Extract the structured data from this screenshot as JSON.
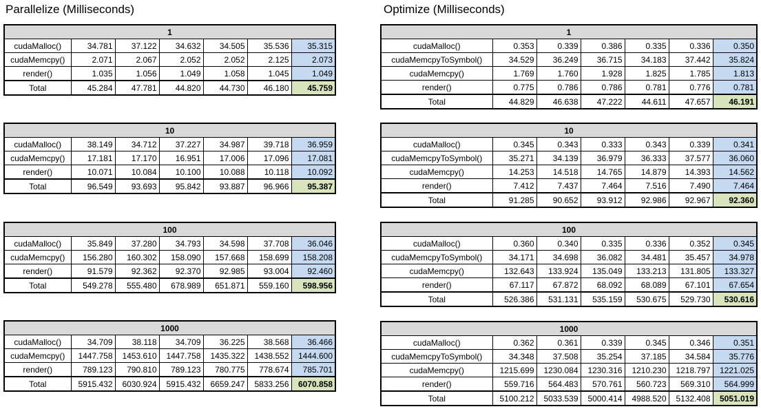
{
  "parallelize": {
    "title": "Parallelize (Milliseconds)",
    "blocks": [
      {
        "header": "1",
        "rows": [
          {
            "label": "cudaMalloc()",
            "values": [
              "34.781",
              "37.122",
              "34.632",
              "34.505",
              "35.536"
            ],
            "avg": "35.315"
          },
          {
            "label": "cudaMemcpy()",
            "values": [
              "2.071",
              "2.067",
              "2.052",
              "2.052",
              "2.125"
            ],
            "avg": "2.073"
          },
          {
            "label": "render()",
            "values": [
              "1.035",
              "1.056",
              "1.049",
              "1.058",
              "1.045"
            ],
            "avg": "1.049"
          },
          {
            "label": "Total",
            "values": [
              "45.284",
              "47.781",
              "44.820",
              "44.730",
              "46.180"
            ],
            "avg": "45.759"
          }
        ]
      },
      {
        "header": "10",
        "rows": [
          {
            "label": "cudaMalloc()",
            "values": [
              "38.149",
              "34.712",
              "37.227",
              "34.987",
              "39.718"
            ],
            "avg": "36.959"
          },
          {
            "label": "cudaMemcpy()",
            "values": [
              "17.181",
              "17.170",
              "16.951",
              "17.006",
              "17.096"
            ],
            "avg": "17.081"
          },
          {
            "label": "render()",
            "values": [
              "10.071",
              "10.084",
              "10.100",
              "10.088",
              "10.118"
            ],
            "avg": "10.092"
          },
          {
            "label": "Total",
            "values": [
              "96.549",
              "93.693",
              "95.842",
              "93.887",
              "96.966"
            ],
            "avg": "95.387"
          }
        ]
      },
      {
        "header": "100",
        "rows": [
          {
            "label": "cudaMalloc()",
            "values": [
              "35.849",
              "37.280",
              "34.793",
              "34.598",
              "37.708"
            ],
            "avg": "36.046"
          },
          {
            "label": "cudaMemcpy()",
            "values": [
              "156.280",
              "160.302",
              "158.090",
              "157.668",
              "158.699"
            ],
            "avg": "158.208"
          },
          {
            "label": "render()",
            "values": [
              "91.579",
              "92.362",
              "92.370",
              "92.985",
              "93.004"
            ],
            "avg": "92.460"
          },
          {
            "label": "Total",
            "values": [
              "549.278",
              "555.480",
              "678.989",
              "651.871",
              "559.160"
            ],
            "avg": "598.956"
          }
        ]
      },
      {
        "header": "1000",
        "rows": [
          {
            "label": "cudaMalloc()",
            "values": [
              "34.709",
              "38.118",
              "34.709",
              "36.225",
              "38.568"
            ],
            "avg": "36.466"
          },
          {
            "label": "cudaMemcpy()",
            "values": [
              "1447.758",
              "1453.610",
              "1447.758",
              "1435.322",
              "1438.552"
            ],
            "avg": "1444.600"
          },
          {
            "label": "render()",
            "values": [
              "789.123",
              "790.810",
              "789.123",
              "780.775",
              "778.674"
            ],
            "avg": "785.701"
          },
          {
            "label": "Total",
            "values": [
              "5915.432",
              "6030.924",
              "5915.432",
              "6659.247",
              "5833.256"
            ],
            "avg": "6070.858"
          }
        ]
      }
    ]
  },
  "optimize": {
    "title": "Optimize (Milliseconds)",
    "blocks": [
      {
        "header": "1",
        "rows": [
          {
            "label": "cudaMalloc()",
            "values": [
              "0.353",
              "0.339",
              "0.386",
              "0.335",
              "0.336"
            ],
            "avg": "0.350"
          },
          {
            "label": "cudaMemcpyToSymbol()",
            "values": [
              "34.529",
              "36.249",
              "36.715",
              "34.183",
              "37.442"
            ],
            "avg": "35.824"
          },
          {
            "label": "cudaMemcpy()",
            "values": [
              "1.769",
              "1.760",
              "1.928",
              "1.825",
              "1.785"
            ],
            "avg": "1.813"
          },
          {
            "label": "render()",
            "values": [
              "0.775",
              "0.786",
              "0.786",
              "0.781",
              "0.776"
            ],
            "avg": "0.781"
          },
          {
            "label": "Total",
            "values": [
              "44.829",
              "46.638",
              "47.222",
              "44.611",
              "47.657"
            ],
            "avg": "46.191"
          }
        ]
      },
      {
        "header": "10",
        "rows": [
          {
            "label": "cudaMalloc()",
            "values": [
              "0.345",
              "0.343",
              "0.333",
              "0.343",
              "0.339"
            ],
            "avg": "0.341"
          },
          {
            "label": "cudaMemcpyToSymbol()",
            "values": [
              "35.271",
              "34.139",
              "36.979",
              "36.333",
              "37.577"
            ],
            "avg": "36.060"
          },
          {
            "label": "cudaMemcpy()",
            "values": [
              "14.253",
              "14.518",
              "14.765",
              "14.879",
              "14.393"
            ],
            "avg": "14.562"
          },
          {
            "label": "render()",
            "values": [
              "7.412",
              "7.437",
              "7.464",
              "7.516",
              "7.490"
            ],
            "avg": "7.464"
          },
          {
            "label": "Total",
            "values": [
              "91.285",
              "90.652",
              "93.912",
              "92.986",
              "92.967"
            ],
            "avg": "92.360"
          }
        ]
      },
      {
        "header": "100",
        "rows": [
          {
            "label": "cudaMalloc()",
            "values": [
              "0.360",
              "0.340",
              "0.335",
              "0.336",
              "0.352"
            ],
            "avg": "0.345"
          },
          {
            "label": "cudaMemcpyToSymbol()",
            "values": [
              "34.171",
              "34.698",
              "36.082",
              "34.481",
              "35.457"
            ],
            "avg": "34.978"
          },
          {
            "label": "cudaMemcpy()",
            "values": [
              "132.643",
              "133.924",
              "135.049",
              "133.213",
              "131.805"
            ],
            "avg": "133.327"
          },
          {
            "label": "render()",
            "values": [
              "67.117",
              "67.872",
              "68.092",
              "68.089",
              "67.101"
            ],
            "avg": "67.654"
          },
          {
            "label": "Total",
            "values": [
              "526.386",
              "531.131",
              "535.159",
              "530.675",
              "529.730"
            ],
            "avg": "530.616"
          }
        ]
      },
      {
        "header": "1000",
        "rows": [
          {
            "label": "cudaMalloc()",
            "values": [
              "0.362",
              "0.361",
              "0.339",
              "0.345",
              "0.346"
            ],
            "avg": "0.351"
          },
          {
            "label": "cudaMemcpyToSymbol()",
            "values": [
              "34.348",
              "37.508",
              "35.254",
              "37.185",
              "34.584"
            ],
            "avg": "35.776"
          },
          {
            "label": "cudaMemcpy()",
            "values": [
              "1215.699",
              "1230.084",
              "1230.316",
              "1210.230",
              "1218.797"
            ],
            "avg": "1221.025"
          },
          {
            "label": "render()",
            "values": [
              "559.716",
              "564.483",
              "570.761",
              "560.723",
              "569.310"
            ],
            "avg": "564.999"
          },
          {
            "label": "Total",
            "values": [
              "5100.212",
              "5033.539",
              "5000.414",
              "4988.520",
              "5132.408"
            ],
            "avg": "5051.019"
          }
        ]
      }
    ]
  }
}
